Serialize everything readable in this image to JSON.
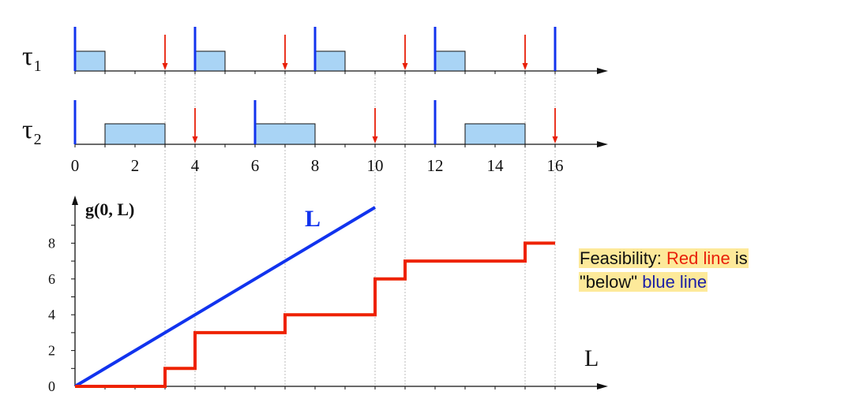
{
  "colors": {
    "red": "#ee2200",
    "blue": "#1133ee",
    "fill": "#a9d4f5",
    "grid": "#bbbbbb",
    "deadline": "#e8200a"
  },
  "chart_data": [
    {
      "type": "timeline",
      "task_label": "τ1",
      "releases": [
        0,
        4,
        8,
        12,
        16
      ],
      "deadlines": [
        3,
        7,
        11,
        15
      ],
      "executions": [
        [
          0,
          1
        ],
        [
          4,
          5
        ],
        [
          8,
          9
        ],
        [
          12,
          13
        ]
      ]
    },
    {
      "type": "timeline",
      "task_label": "τ2",
      "releases": [
        0,
        6,
        12
      ],
      "deadlines": [
        4,
        10,
        16
      ],
      "executions": [
        [
          1,
          3
        ],
        [
          6,
          8
        ],
        [
          13,
          15
        ]
      ]
    },
    {
      "type": "line",
      "ylabel": "g(0, L)",
      "xlabel": "L",
      "x_ticks": [
        "0",
        "2",
        "4",
        "6",
        "8",
        "10",
        "12",
        "14",
        "16"
      ],
      "y_ticks": [
        "0",
        "2",
        "4",
        "6",
        "8"
      ],
      "xlim": [
        0,
        17.7
      ],
      "ylim": [
        0,
        10
      ],
      "grid_x": [
        3,
        4,
        7,
        10,
        11,
        15,
        16
      ],
      "series": [
        {
          "name": "L",
          "color": "blue",
          "x": [
            0,
            10
          ],
          "y": [
            0,
            10
          ]
        },
        {
          "color": "red",
          "x": [
            0,
            3,
            3,
            4,
            4,
            7,
            7,
            10,
            10,
            11,
            11,
            15,
            15,
            16
          ],
          "y": [
            0,
            0,
            1,
            1,
            3,
            3,
            4,
            4,
            6,
            6,
            7,
            7,
            8,
            8
          ]
        }
      ]
    }
  ],
  "callout": {
    "part1": "Feasibility: ",
    "red_text": "Red line",
    "part2": " is",
    "part3": "\"below\" ",
    "blue_text": "blue line"
  }
}
